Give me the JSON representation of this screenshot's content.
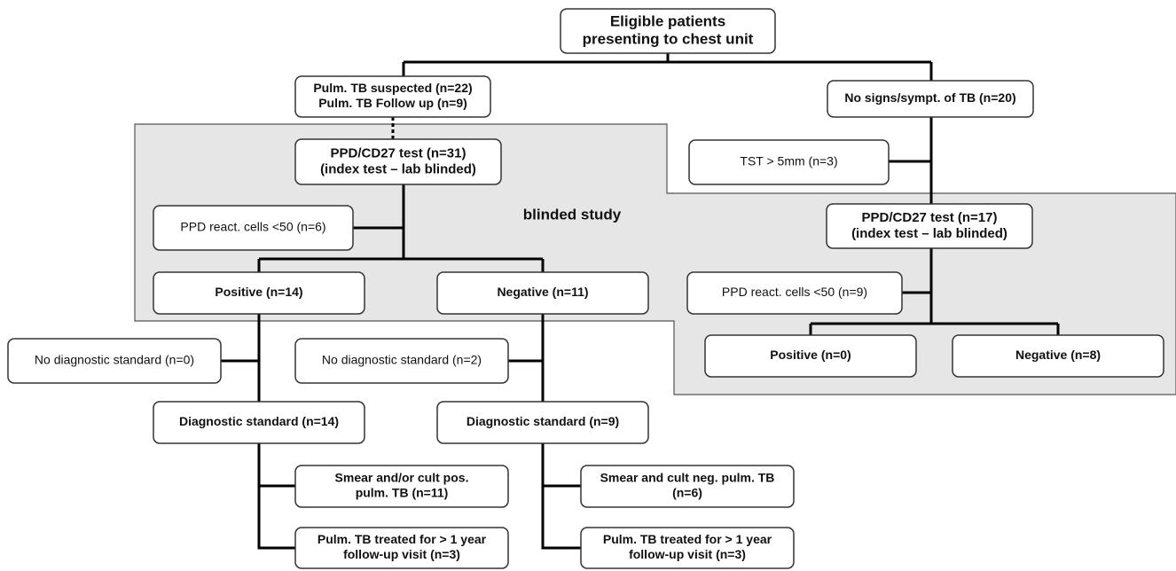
{
  "nodes": [
    {
      "lines": [
        "Eligible patients",
        "presenting to chest unit"
      ]
    },
    {
      "lines": [
        "Pulm. TB suspected (n=22)",
        "Pulm. TB Follow up (n=9)"
      ]
    },
    {
      "lines": [
        "No signs/sympt. of TB (n=20)"
      ]
    },
    {
      "lines": [
        "PPD/CD27 test (n=31)",
        "(index test – lab blinded)"
      ]
    },
    {
      "lines": [
        "TST > 5mm (n=3)"
      ]
    },
    {
      "lines": [
        "PPD react. cells <50 (n=6)"
      ]
    },
    {
      "lines": [
        "PPD/CD27 test (n=17)",
        "(index test – lab blinded)"
      ]
    },
    {
      "lines": [
        "Positive (n=14)"
      ]
    },
    {
      "lines": [
        "Negative (n=11)"
      ]
    },
    {
      "lines": [
        "PPD react. cells <50 (n=9)"
      ]
    },
    {
      "lines": [
        "No diagnostic standard (n=0)"
      ]
    },
    {
      "lines": [
        "No diagnostic standard (n=2)"
      ]
    },
    {
      "lines": [
        "Positive (n=0)"
      ]
    },
    {
      "lines": [
        "Negative (n=8)"
      ]
    },
    {
      "lines": [
        "Diagnostic standard (n=14)"
      ]
    },
    {
      "lines": [
        "Diagnostic standard (n=9)"
      ]
    },
    {
      "lines": [
        "Smear and/or cult pos.",
        "pulm. TB (n=11)"
      ]
    },
    {
      "lines": [
        "Smear and cult neg. pulm. TB",
        "(n=6)"
      ]
    },
    {
      "lines": [
        "Pulm. TB treated for > 1 year",
        "follow-up visit  (n=3)"
      ]
    },
    {
      "lines": [
        "Pulm. TB treated for > 1 year",
        "follow-up visit  (n=3)"
      ]
    }
  ],
  "region_label": "blinded study"
}
